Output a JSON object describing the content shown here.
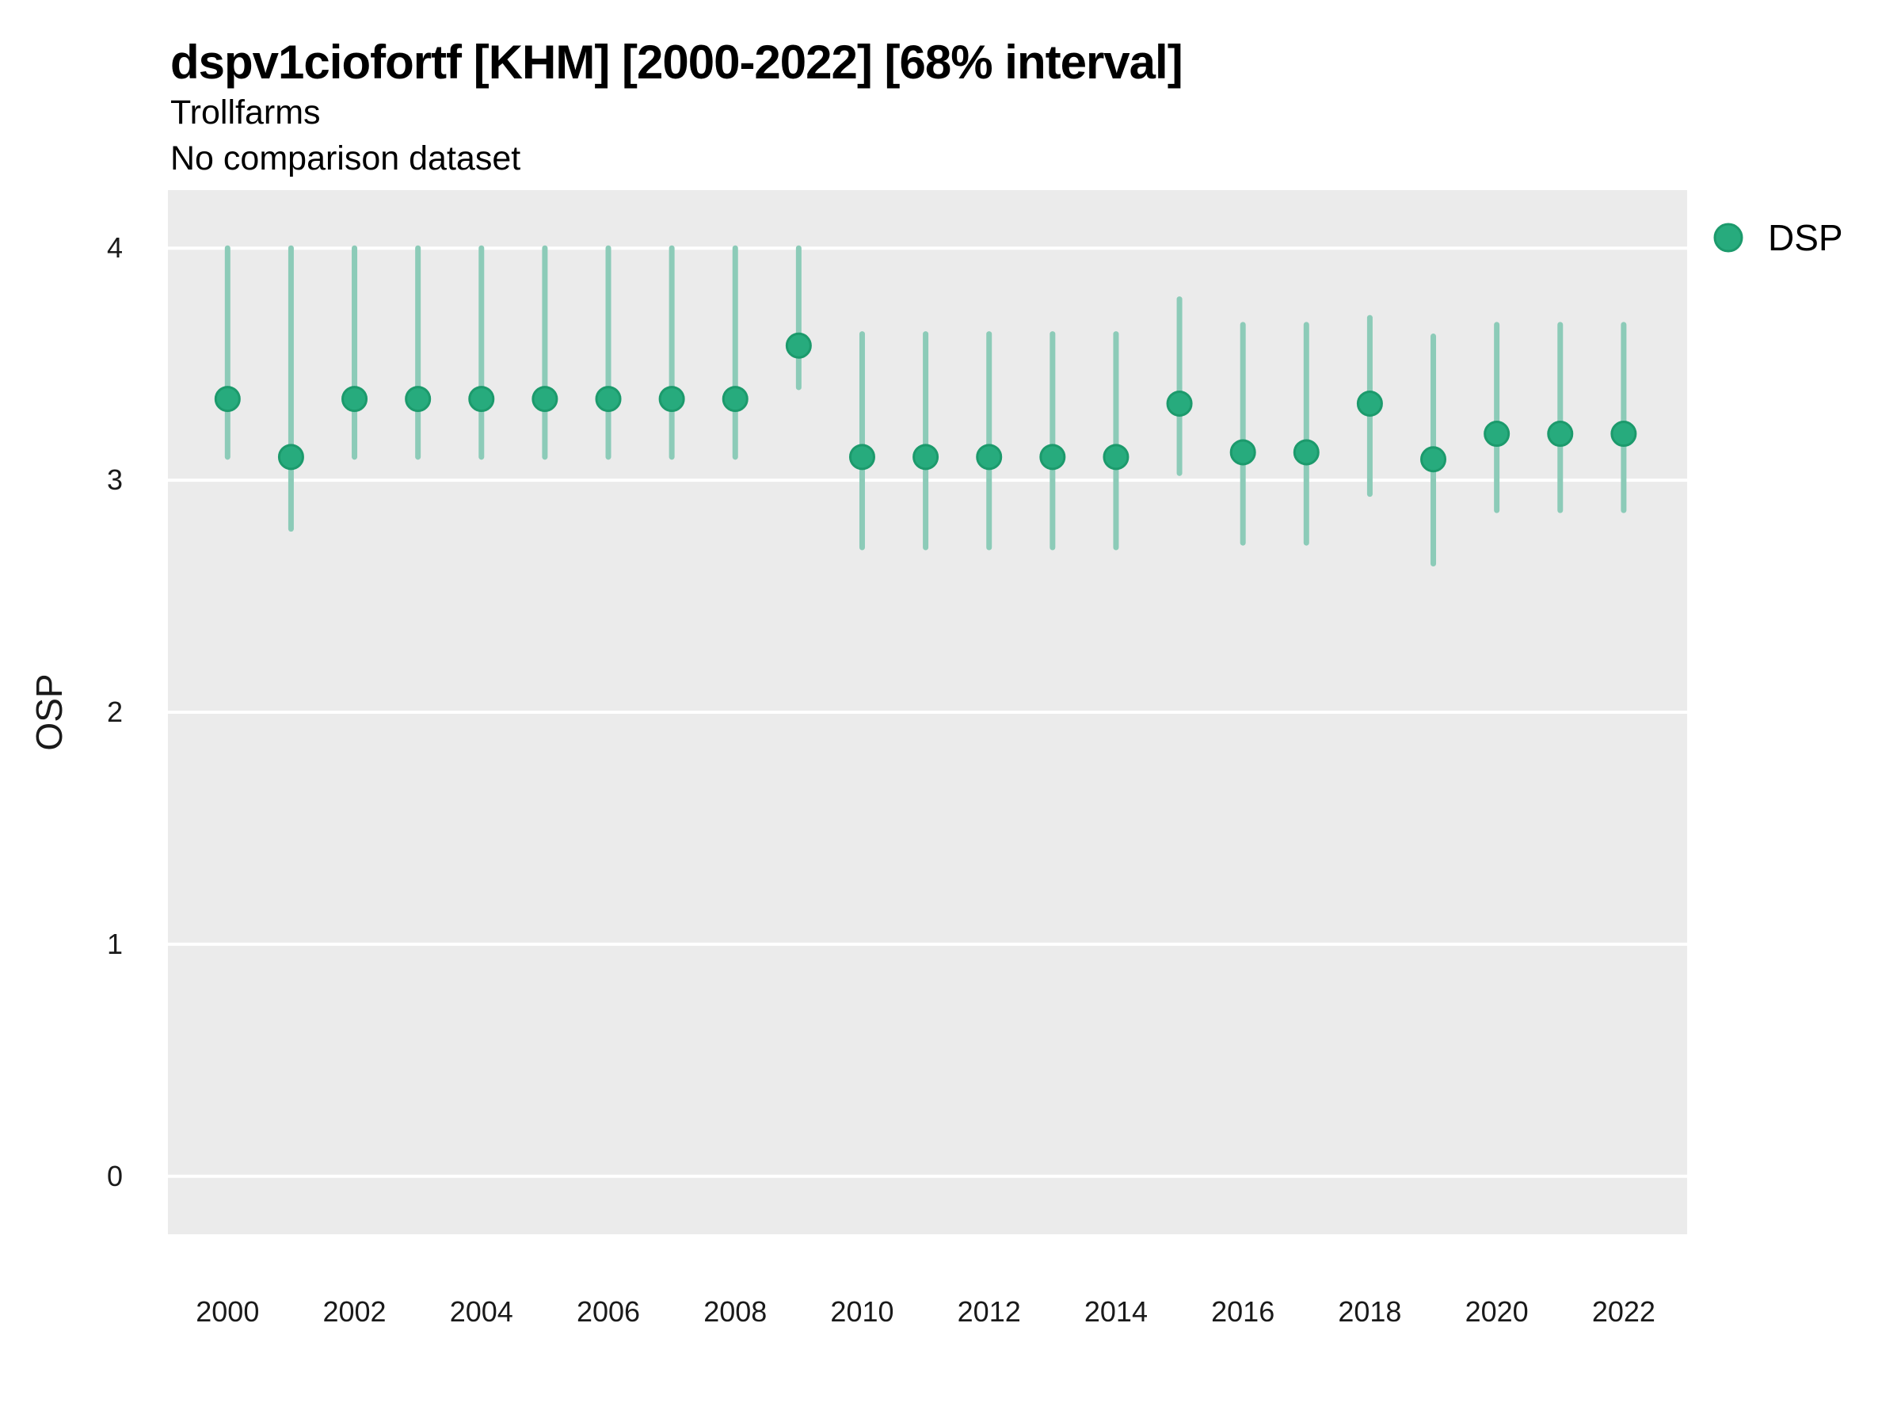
{
  "header": {
    "title": "dspv1ciofortf [KHM] [2000-2022] [68% interval]",
    "subtitle": "Trollfarms",
    "comparison_note": "No comparison dataset"
  },
  "legend": {
    "items": [
      {
        "label": "DSP",
        "swatch": "circle"
      }
    ]
  },
  "axes": {
    "y_label": "OSP",
    "y_ticks": [
      4,
      3,
      2,
      1,
      0
    ],
    "x_ticks": [
      2000,
      2002,
      2004,
      2006,
      2008,
      2010,
      2012,
      2014,
      2016,
      2018,
      2020,
      2022
    ]
  },
  "colors": {
    "panel_bg": "#EBEBEB",
    "gridline": "#FFFFFF",
    "interval_bar": "#8CCBB8",
    "point_fill": "#27AB7D",
    "point_stroke": "#1C9A6C",
    "tick_text": "#1A1A1A",
    "title_text": "#000000"
  },
  "chart_data": {
    "type": "pointrange",
    "title": "dspv1ciofortf [KHM] [2000-2022] [68% interval]",
    "subtitle": "Trollfarms",
    "note": "No comparison dataset",
    "interval": "68%",
    "xlabel": "",
    "ylabel": "OSP",
    "xlim": [
      1999.06,
      2023.0
    ],
    "ylim": [
      -0.25,
      4.25
    ],
    "grid": "major-horizontal",
    "legend_position": "top-right",
    "series": [
      {
        "name": "DSP",
        "points": [
          {
            "year": 2000,
            "value": 3.35,
            "lo": 3.1,
            "hi": 4.0
          },
          {
            "year": 2001,
            "value": 3.1,
            "lo": 2.79,
            "hi": 4.0
          },
          {
            "year": 2002,
            "value": 3.35,
            "lo": 3.1,
            "hi": 4.0
          },
          {
            "year": 2003,
            "value": 3.35,
            "lo": 3.1,
            "hi": 4.0
          },
          {
            "year": 2004,
            "value": 3.35,
            "lo": 3.1,
            "hi": 4.0
          },
          {
            "year": 2005,
            "value": 3.35,
            "lo": 3.1,
            "hi": 4.0
          },
          {
            "year": 2006,
            "value": 3.35,
            "lo": 3.1,
            "hi": 4.0
          },
          {
            "year": 2007,
            "value": 3.35,
            "lo": 3.1,
            "hi": 4.0
          },
          {
            "year": 2008,
            "value": 3.35,
            "lo": 3.1,
            "hi": 4.0
          },
          {
            "year": 2009,
            "value": 3.58,
            "lo": 3.4,
            "hi": 4.0
          },
          {
            "year": 2010,
            "value": 3.1,
            "lo": 2.71,
            "hi": 3.63
          },
          {
            "year": 2011,
            "value": 3.1,
            "lo": 2.71,
            "hi": 3.63
          },
          {
            "year": 2012,
            "value": 3.1,
            "lo": 2.71,
            "hi": 3.63
          },
          {
            "year": 2013,
            "value": 3.1,
            "lo": 2.71,
            "hi": 3.63
          },
          {
            "year": 2014,
            "value": 3.1,
            "lo": 2.71,
            "hi": 3.63
          },
          {
            "year": 2015,
            "value": 3.33,
            "lo": 3.03,
            "hi": 3.78
          },
          {
            "year": 2016,
            "value": 3.12,
            "lo": 2.73,
            "hi": 3.67
          },
          {
            "year": 2017,
            "value": 3.12,
            "lo": 2.73,
            "hi": 3.67
          },
          {
            "year": 2018,
            "value": 3.33,
            "lo": 2.94,
            "hi": 3.7
          },
          {
            "year": 2019,
            "value": 3.09,
            "lo": 2.64,
            "hi": 3.62
          },
          {
            "year": 2020,
            "value": 3.2,
            "lo": 2.87,
            "hi": 3.67
          },
          {
            "year": 2021,
            "value": 3.2,
            "lo": 2.87,
            "hi": 3.67
          },
          {
            "year": 2022,
            "value": 3.2,
            "lo": 2.87,
            "hi": 3.67
          }
        ]
      }
    ]
  }
}
